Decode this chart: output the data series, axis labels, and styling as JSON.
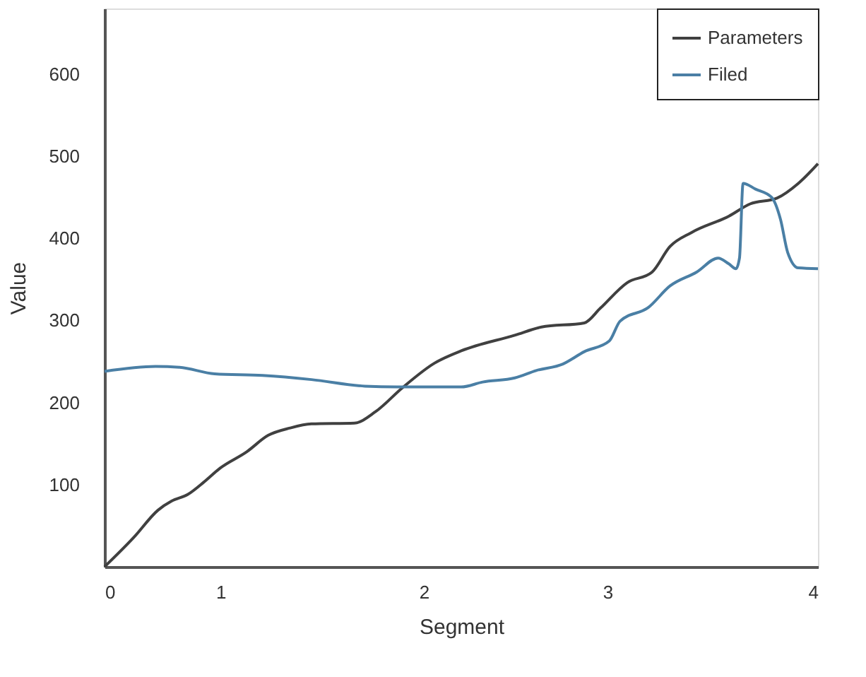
{
  "chart_data": {
    "type": "line",
    "xlabel": "Segment",
    "ylabel": "Value",
    "xlim": [
      0,
      4
    ],
    "xticks": [
      0,
      {
        "value": 0.65,
        "label": "1"
      },
      {
        "value": 1.79,
        "label": "2"
      },
      {
        "value": 2.82,
        "label": "3"
      },
      4
    ],
    "ylim": [
      0,
      680
    ],
    "yticks": [
      100,
      200,
      300,
      400,
      500,
      600
    ],
    "grid": false,
    "legend": "top right",
    "line_style": "solid",
    "marker": "none",
    "series": [
      {
        "name": "Parameters",
        "color": "#404040",
        "x": [
          0,
          0.165,
          0.3,
          0.376,
          0.466,
          0.556,
          0.647,
          0.797,
          0.917,
          1.04,
          1.16,
          1.4,
          1.52,
          1.67,
          1.85,
          2.0,
          2.3,
          2.45,
          2.69,
          2.78,
          2.93,
          3.07,
          3.17,
          3.29,
          3.5,
          3.62,
          3.77,
          3.89,
          4.0
        ],
        "values": [
          0,
          36,
          69,
          80,
          88,
          103,
          120,
          140,
          160,
          169,
          174,
          175,
          189,
          218,
          248,
          263,
          282,
          292,
          297,
          315,
          346,
          359,
          390,
          407,
          427,
          442,
          449,
          467,
          491
        ]
      },
      {
        "name": "Filed",
        "color": "#4a7fa5",
        "x": [
          0,
          0.286,
          0.42,
          0.617,
          0.887,
          1.16,
          1.46,
          1.64,
          2.0,
          2.12,
          2.3,
          2.42,
          2.57,
          2.69,
          2.83,
          2.89,
          3.05,
          3.17,
          3.32,
          3.44,
          3.5,
          3.54,
          3.56,
          3.58,
          3.65,
          3.74,
          3.79,
          3.83,
          3.89,
          4.0
        ],
        "values": [
          238,
          244,
          243,
          235,
          233,
          228,
          220,
          219,
          219,
          225,
          230,
          239,
          247,
          262,
          275,
          299,
          316,
          342,
          359,
          376,
          369,
          363,
          376,
          467,
          460,
          450,
          423,
          383,
          364,
          363
        ]
      }
    ]
  }
}
